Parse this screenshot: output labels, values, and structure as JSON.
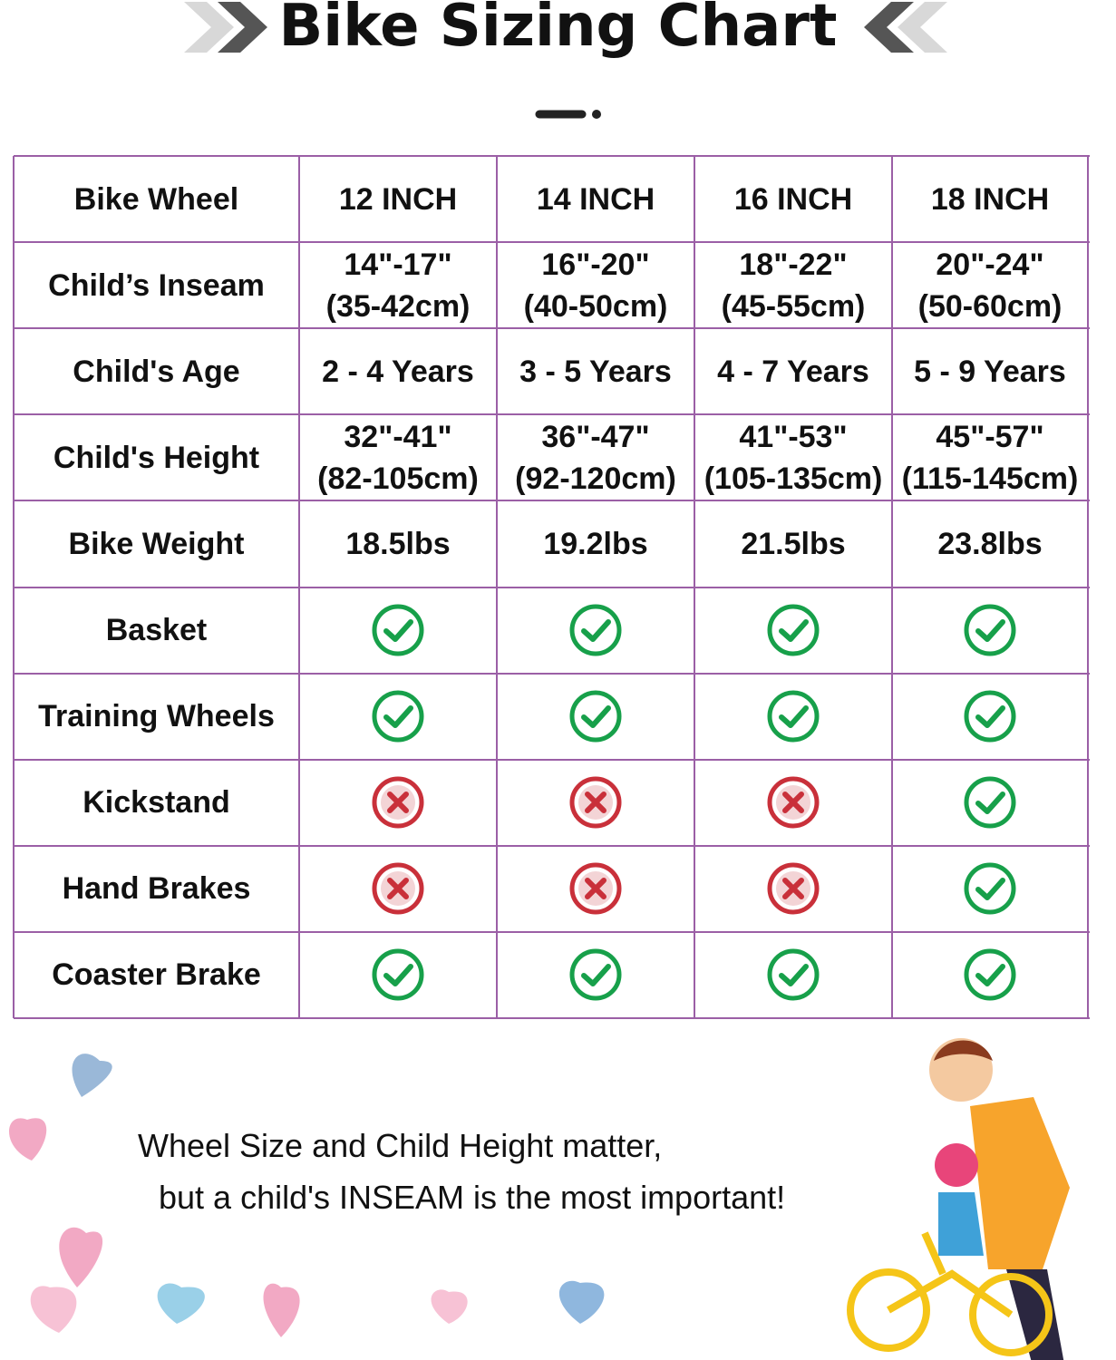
{
  "header": {
    "title": "Bike Sizing Chart"
  },
  "table": {
    "columns": [
      "Bike Wheel",
      "12 INCH",
      "14 INCH",
      "16 INCH",
      "18 INCH"
    ],
    "rows": [
      {
        "label": "Child’s Inseam",
        "cells": [
          [
            "14\"-17\"",
            "(35-42cm)"
          ],
          [
            "16\"-20\"",
            "(40-50cm)"
          ],
          [
            "18\"-22\"",
            "(45-55cm)"
          ],
          [
            "20\"-24\"",
            "(50-60cm)"
          ]
        ]
      },
      {
        "label": "Child's Age",
        "cells": [
          [
            "2 - 4 Years"
          ],
          [
            "3 - 5 Years"
          ],
          [
            "4 - 7 Years"
          ],
          [
            "5 - 9 Years"
          ]
        ]
      },
      {
        "label": "Child's Height",
        "cells": [
          [
            "32\"-41\"",
            "(82-105cm)"
          ],
          [
            "36\"-47\"",
            "(92-120cm)"
          ],
          [
            "41\"-53\"",
            "(105-135cm)"
          ],
          [
            "45\"-57\"",
            "(115-145cm)"
          ]
        ]
      },
      {
        "label": "Bike Weight",
        "cells": [
          [
            "18.5lbs"
          ],
          [
            "19.2lbs"
          ],
          [
            "21.5lbs"
          ],
          [
            "23.8lbs"
          ]
        ]
      },
      {
        "label": "Basket",
        "cells": [
          true,
          true,
          true,
          true
        ]
      },
      {
        "label": "Training Wheels",
        "cells": [
          true,
          true,
          true,
          true
        ]
      },
      {
        "label": "Kickstand",
        "cells": [
          false,
          false,
          false,
          true
        ]
      },
      {
        "label": "Hand Brakes",
        "cells": [
          false,
          false,
          false,
          true
        ]
      },
      {
        "label": "Coaster Brake",
        "cells": [
          true,
          true,
          true,
          true
        ]
      }
    ]
  },
  "footer": {
    "lines": [
      "Wheel Size and Child Height matter,",
      "but a child's INSEAM is the most important!"
    ]
  }
}
